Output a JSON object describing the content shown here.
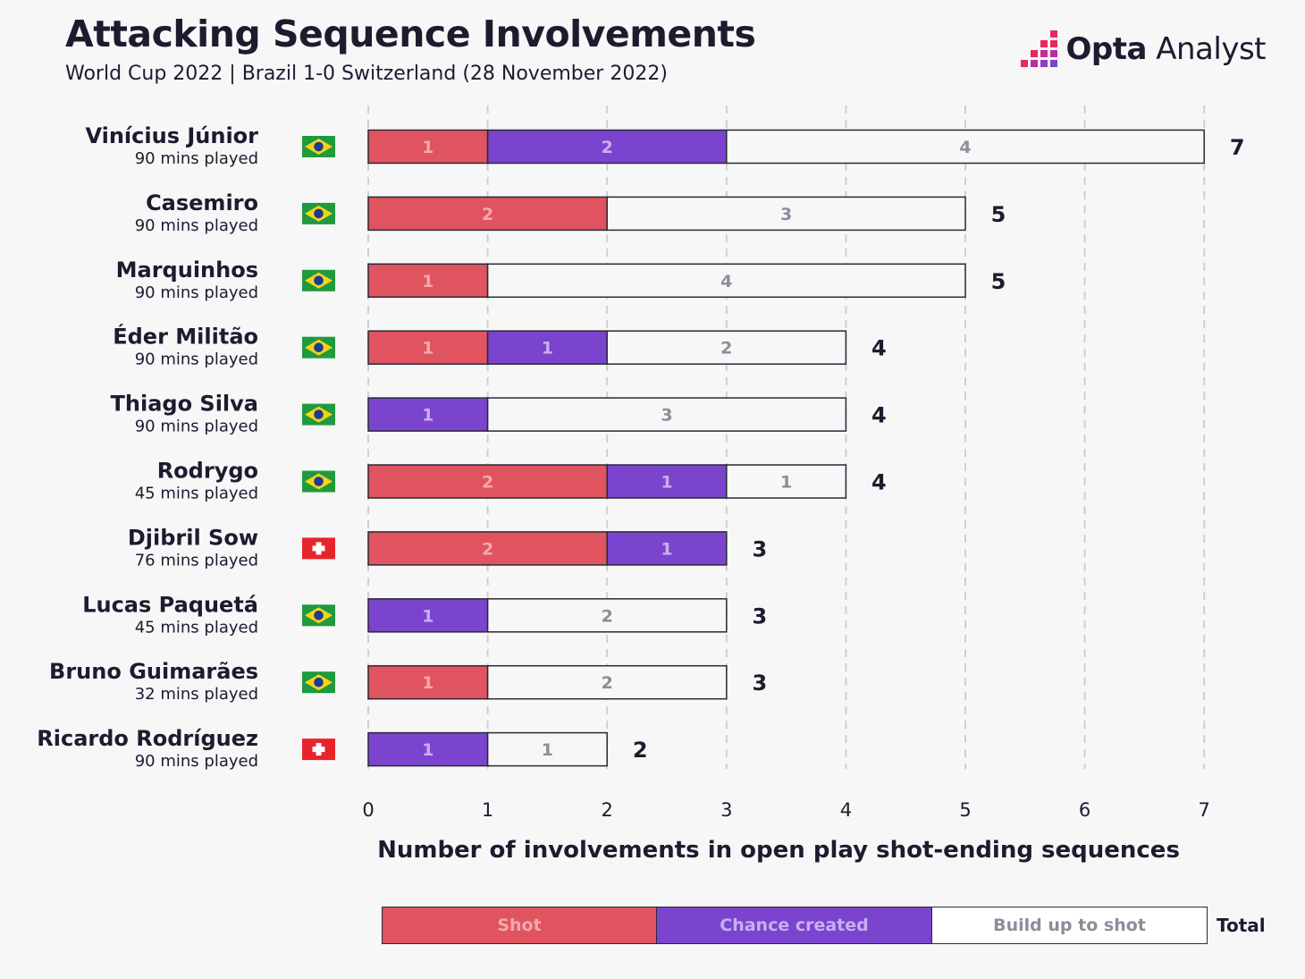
{
  "header": {
    "title": "Attacking Sequence Involvements",
    "subtitle": "World Cup 2022 | Brazil 1-0 Switzerland (28 November 2022)",
    "brand_bold": "Opta",
    "brand_light": " Analyst"
  },
  "legend": {
    "shot": "Shot",
    "chance": "Chance created",
    "buildup": "Build up to shot",
    "total": "Total"
  },
  "colors": {
    "shot": "#e0545f",
    "chance": "#7b44cf",
    "buildup": "#f7f7f8",
    "text": "#1d1b2e",
    "grid": "#cfcfcf"
  },
  "chart_data": {
    "type": "bar",
    "orientation": "horizontal",
    "stacked": true,
    "xlabel": "Number of involvements in open play shot-ending sequences",
    "xlim": [
      0,
      7
    ],
    "xticks": [
      0,
      1,
      2,
      3,
      4,
      5,
      6,
      7
    ],
    "grid": "vertical dashed",
    "legend_position": "bottom",
    "series_names": [
      "Shot",
      "Chance created",
      "Build up to shot"
    ],
    "players": [
      {
        "name": "Vinícius Júnior",
        "mins": "90 mins played",
        "team": "brazil",
        "shot": 1,
        "chance": 2,
        "buildup": 4,
        "total": 7
      },
      {
        "name": "Casemiro",
        "mins": "90 mins played",
        "team": "brazil",
        "shot": 2,
        "chance": 0,
        "buildup": 3,
        "total": 5
      },
      {
        "name": "Marquinhos",
        "mins": "90 mins played",
        "team": "brazil",
        "shot": 1,
        "chance": 0,
        "buildup": 4,
        "total": 5
      },
      {
        "name": "Éder Militão",
        "mins": "90 mins played",
        "team": "brazil",
        "shot": 1,
        "chance": 1,
        "buildup": 2,
        "total": 4
      },
      {
        "name": "Thiago Silva",
        "mins": "90 mins played",
        "team": "brazil",
        "shot": 0,
        "chance": 1,
        "buildup": 3,
        "total": 4
      },
      {
        "name": "Rodrygo",
        "mins": "45 mins played",
        "team": "brazil",
        "shot": 2,
        "chance": 1,
        "buildup": 1,
        "total": 4
      },
      {
        "name": "Djibril Sow",
        "mins": "76 mins played",
        "team": "switzerland",
        "shot": 2,
        "chance": 1,
        "buildup": 0,
        "total": 3
      },
      {
        "name": "Lucas Paquetá",
        "mins": "45 mins played",
        "team": "brazil",
        "shot": 0,
        "chance": 1,
        "buildup": 2,
        "total": 3
      },
      {
        "name": "Bruno Guimarães",
        "mins": "32 mins played",
        "team": "brazil",
        "shot": 1,
        "chance": 0,
        "buildup": 2,
        "total": 3
      },
      {
        "name": "Ricardo Rodríguez",
        "mins": "90 mins played",
        "team": "switzerland",
        "shot": 0,
        "chance": 1,
        "buildup": 1,
        "total": 2
      }
    ]
  }
}
